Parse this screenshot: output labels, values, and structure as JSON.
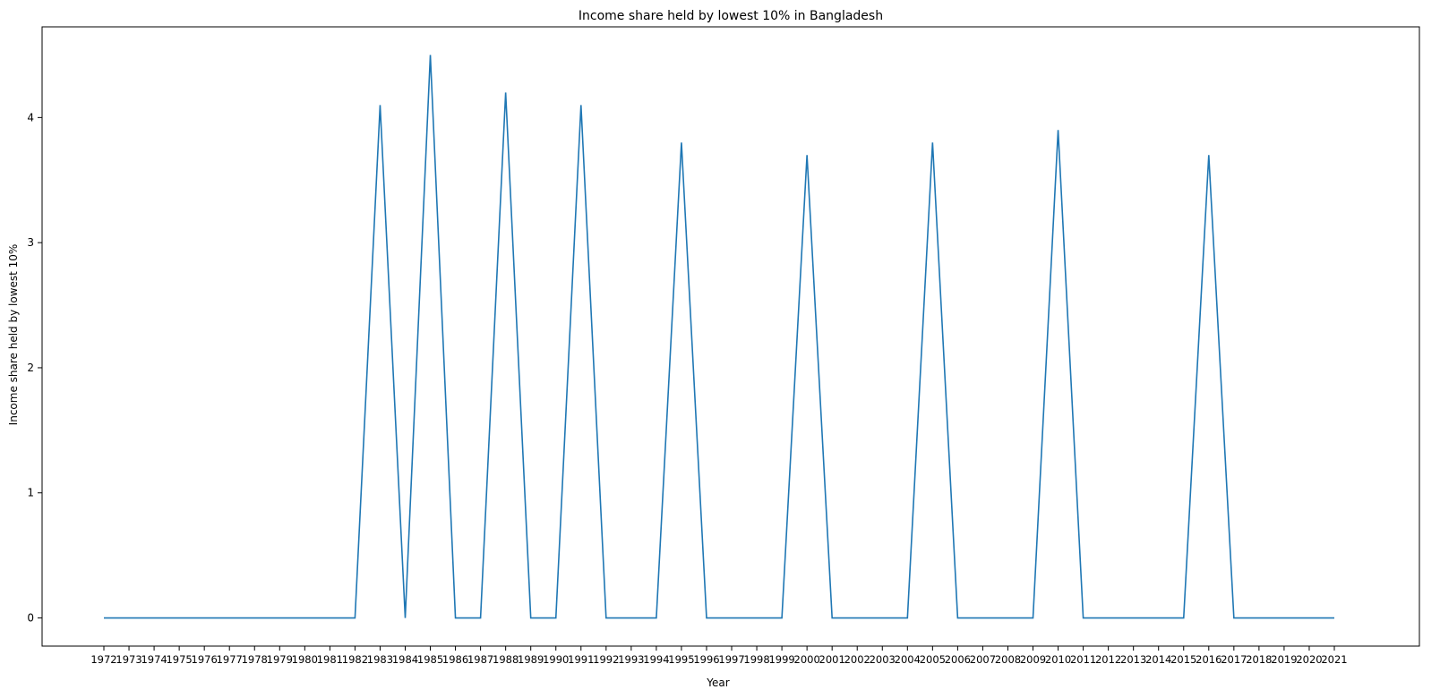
{
  "chart_data": {
    "type": "line",
    "title": "Income share held by lowest 10% in Bangladesh",
    "xlabel": "Year",
    "ylabel": "Income share held by lowest 10%",
    "x": [
      "1972",
      "1973",
      "1974",
      "1975",
      "1976",
      "1977",
      "1978",
      "1979",
      "1980",
      "1981",
      "1982",
      "1983",
      "1984",
      "1985",
      "1986",
      "1987",
      "1988",
      "1989",
      "1990",
      "1991",
      "1992",
      "1993",
      "1994",
      "1995",
      "1996",
      "1997",
      "1998",
      "1999",
      "2000",
      "2001",
      "2002",
      "2003",
      "2004",
      "2005",
      "2006",
      "2007",
      "2008",
      "2009",
      "2010",
      "2011",
      "2012",
      "2013",
      "2014",
      "2015",
      "2016",
      "2017",
      "2018",
      "2019",
      "2020",
      "2021"
    ],
    "series": [
      {
        "values": [
          0,
          0,
          0,
          0,
          0,
          0,
          0,
          0,
          0,
          0,
          0,
          4.1,
          0,
          4.5,
          0,
          0,
          4.2,
          0,
          0,
          4.1,
          0,
          0,
          0,
          3.8,
          0,
          0,
          0,
          0,
          3.7,
          0,
          0,
          0,
          0,
          3.8,
          0,
          0,
          0,
          0,
          3.9,
          0,
          0,
          0,
          0,
          0,
          3.7,
          0,
          0,
          0,
          0,
          0
        ],
        "color": "#1f77b4"
      }
    ],
    "yticks": [
      "0",
      "1",
      "2",
      "3",
      "4"
    ],
    "ylim": [
      -0.225,
      4.725
    ],
    "grid": false,
    "legend": false
  }
}
